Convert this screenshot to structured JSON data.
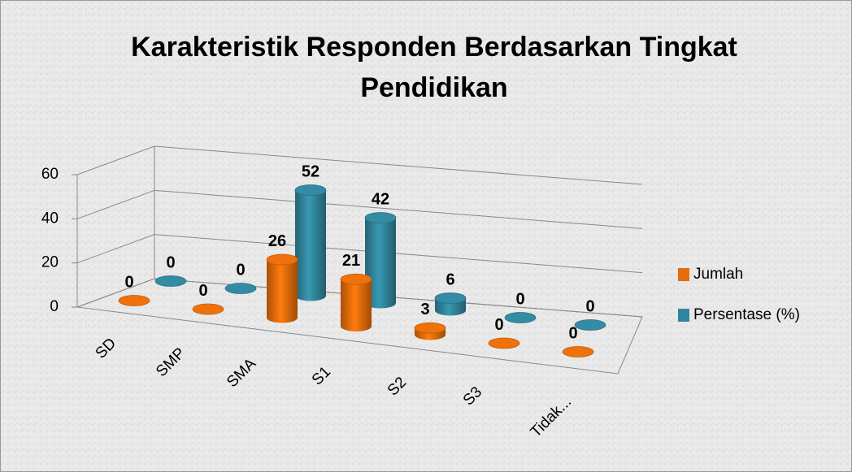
{
  "chart_data": {
    "type": "bar3d",
    "title": "Karakteristik Responden Berdasarkan Tingkat Pendidikan",
    "categories": [
      "SD",
      "SMP",
      "SMA",
      "S1",
      "S2",
      "S3",
      "Tidak..."
    ],
    "series": [
      {
        "name": "Jumlah",
        "color": "#e46c0a",
        "values": [
          0,
          0,
          26,
          21,
          3,
          0,
          0
        ]
      },
      {
        "name": "Persentase (%)",
        "color": "#31859c",
        "values": [
          0,
          0,
          52,
          42,
          6,
          0,
          0
        ]
      }
    ],
    "ylim": [
      0,
      60
    ],
    "yticks": [
      0,
      20,
      40,
      60
    ],
    "grid": true,
    "legend": "right"
  }
}
